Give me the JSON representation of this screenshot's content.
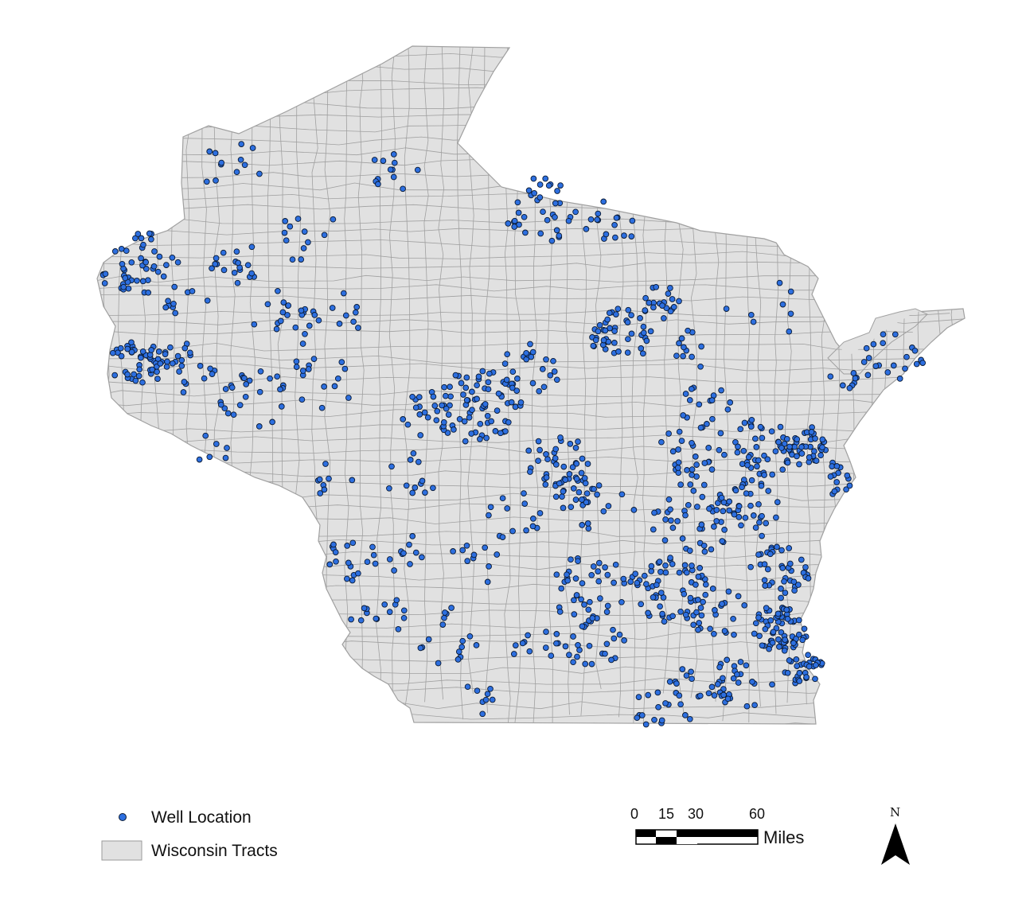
{
  "legend": {
    "well_label": "Well Location",
    "tracts_label": "Wisconsin Tracts"
  },
  "scale_bar": {
    "ticks": [
      "0",
      "15",
      "30",
      "60"
    ],
    "unit": "Miles"
  },
  "north_arrow": {
    "letter": "N"
  },
  "colors": {
    "well_fill": "#2d6fe0",
    "well_stroke": "#0a1a33",
    "tract_fill": "#e1e1e1",
    "tract_stroke": "#a0a0a0"
  },
  "map": {
    "well_marker": "filled-circle",
    "tract_pattern": "census-tract-boundaries"
  }
}
